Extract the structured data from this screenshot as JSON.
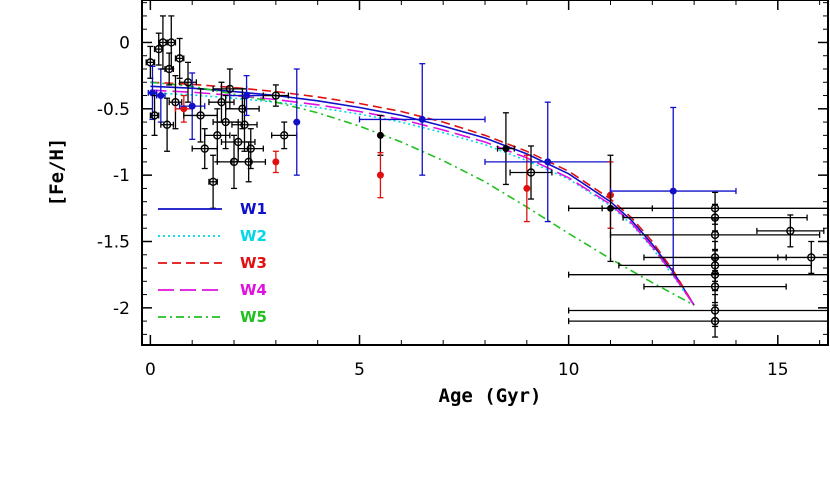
{
  "chart_data": {
    "type": "scatter",
    "xlabel": "Age (Gyr)",
    "ylabel": "[Fe/H]",
    "xlim": [
      -0.2,
      16.2
    ],
    "ylim": [
      -2.28,
      0.32
    ],
    "xticks": [
      0,
      5,
      10,
      15
    ],
    "yticks": [
      0,
      -0.5,
      -1,
      -1.5,
      -2
    ],
    "xtick_labels": [
      "0",
      "5",
      "10",
      "15"
    ],
    "ytick_labels": [
      "0",
      "-0.5",
      "-1",
      "-1.5",
      "-2"
    ],
    "grid": false,
    "legend_position": "bottom-left",
    "series": [
      {
        "name": "W1",
        "color": "#1010c8",
        "dash": "solid",
        "x": [
          0,
          1,
          2,
          3,
          4,
          5,
          6,
          7,
          8,
          9,
          10,
          11,
          11.5,
          12,
          12.5,
          13
        ],
        "y": [
          -0.33,
          -0.345,
          -0.37,
          -0.4,
          -0.44,
          -0.49,
          -0.55,
          -0.63,
          -0.72,
          -0.84,
          -0.99,
          -1.2,
          -1.34,
          -1.52,
          -1.73,
          -1.98
        ]
      },
      {
        "name": "W2",
        "color": "#00d8e8",
        "dash": "dotted",
        "x": [
          0,
          1,
          2,
          3,
          4,
          5,
          6,
          7,
          8,
          9,
          10,
          11,
          11.5,
          12,
          12.5,
          13
        ],
        "y": [
          -0.38,
          -0.395,
          -0.42,
          -0.45,
          -0.49,
          -0.54,
          -0.6,
          -0.68,
          -0.77,
          -0.89,
          -1.03,
          -1.23,
          -1.37,
          -1.55,
          -1.76,
          -1.98
        ]
      },
      {
        "name": "W3",
        "color": "#e01010",
        "dash": "dashed",
        "x": [
          0,
          1,
          2,
          3,
          4,
          5,
          6,
          7,
          8,
          9,
          10,
          11,
          11.5,
          12,
          12.5,
          13
        ],
        "y": [
          -0.3,
          -0.315,
          -0.34,
          -0.37,
          -0.41,
          -0.46,
          -0.52,
          -0.6,
          -0.7,
          -0.82,
          -0.97,
          -1.18,
          -1.32,
          -1.5,
          -1.72,
          -1.98
        ]
      },
      {
        "name": "W4",
        "color": "#e010e0",
        "dash": "long-dashed",
        "x": [
          0,
          1,
          2,
          3,
          4,
          5,
          6,
          7,
          8,
          9,
          10,
          11,
          11.5,
          12,
          12.5,
          13
        ],
        "y": [
          -0.36,
          -0.375,
          -0.4,
          -0.43,
          -0.47,
          -0.52,
          -0.58,
          -0.66,
          -0.75,
          -0.87,
          -1.02,
          -1.22,
          -1.36,
          -1.54,
          -1.75,
          -1.98
        ]
      },
      {
        "name": "W5",
        "color": "#20c020",
        "dash": "dash-dot",
        "x": [
          0,
          1,
          2,
          3,
          4,
          5,
          6,
          7,
          8,
          9,
          10,
          11,
          12,
          13
        ],
        "y": [
          -0.3,
          -0.33,
          -0.39,
          -0.45,
          -0.53,
          -0.63,
          -0.75,
          -0.89,
          -1.05,
          -1.24,
          -1.44,
          -1.63,
          -1.81,
          -1.98
        ]
      }
    ],
    "observations": [
      {
        "x": 0.0,
        "y": -0.15,
        "xerr": 0.1,
        "yerr": 0.12,
        "color": "#000000",
        "open": true
      },
      {
        "x": 0.05,
        "y": -0.38,
        "xerr": 0.1,
        "yerr": 0.2,
        "color": "#1010c8",
        "open": false
      },
      {
        "x": 0.1,
        "y": -0.55,
        "xerr": 0.1,
        "yerr": 0.15,
        "color": "#000000",
        "open": true
      },
      {
        "x": 0.2,
        "y": -0.05,
        "xerr": 0.1,
        "yerr": 0.12,
        "color": "#000000",
        "open": true
      },
      {
        "x": 0.25,
        "y": -0.4,
        "xerr": 0.1,
        "yerr": 0.2,
        "color": "#1010c8",
        "open": false
      },
      {
        "x": 0.3,
        "y": 0.0,
        "xerr": 0.1,
        "yerr": 0.2,
        "color": "#000000",
        "open": true
      },
      {
        "x": 0.4,
        "y": -0.62,
        "xerr": 0.15,
        "yerr": 0.2,
        "color": "#000000",
        "open": true
      },
      {
        "x": 0.45,
        "y": -0.2,
        "xerr": 0.1,
        "yerr": 0.12,
        "color": "#000000",
        "open": true
      },
      {
        "x": 0.5,
        "y": 0.0,
        "xerr": 0.1,
        "yerr": 0.2,
        "color": "#000000",
        "open": true
      },
      {
        "x": 0.6,
        "y": -0.45,
        "xerr": 0.15,
        "yerr": 0.2,
        "color": "#000000",
        "open": true
      },
      {
        "x": 0.7,
        "y": -0.12,
        "xerr": 0.1,
        "yerr": 0.15,
        "color": "#000000",
        "open": true
      },
      {
        "x": 0.8,
        "y": -0.5,
        "xerr": 0.2,
        "yerr": 0.1,
        "color": "#e01010",
        "open": false
      },
      {
        "x": 0.9,
        "y": -0.3,
        "xerr": 0.2,
        "yerr": 0.15,
        "color": "#000000",
        "open": true
      },
      {
        "x": 1.0,
        "y": -0.48,
        "xerr": 0.3,
        "yerr": 0.25,
        "color": "#1010c8",
        "open": false
      },
      {
        "x": 1.2,
        "y": -0.55,
        "xerr": 0.4,
        "yerr": 0.2,
        "color": "#000000",
        "open": true
      },
      {
        "x": 1.3,
        "y": -0.8,
        "xerr": 0.3,
        "yerr": 0.15,
        "color": "#000000",
        "open": true
      },
      {
        "x": 1.5,
        "y": -1.05,
        "xerr": 0.1,
        "yerr": 0.2,
        "color": "#000000",
        "open": true
      },
      {
        "x": 1.6,
        "y": -0.7,
        "xerr": 0.3,
        "yerr": 0.2,
        "color": "#000000",
        "open": true
      },
      {
        "x": 1.7,
        "y": -0.45,
        "xerr": 0.3,
        "yerr": 0.15,
        "color": "#000000",
        "open": true
      },
      {
        "x": 1.8,
        "y": -0.6,
        "xerr": 0.3,
        "yerr": 0.2,
        "color": "#000000",
        "open": true
      },
      {
        "x": 1.9,
        "y": -0.35,
        "xerr": 0.4,
        "yerr": 0.15,
        "color": "#000000",
        "open": true
      },
      {
        "x": 2.0,
        "y": -0.9,
        "xerr": 0.4,
        "yerr": 0.2,
        "color": "#000000",
        "open": true
      },
      {
        "x": 2.1,
        "y": -0.75,
        "xerr": 0.4,
        "yerr": 0.15,
        "color": "#000000",
        "open": true
      },
      {
        "x": 2.2,
        "y": -0.5,
        "xerr": 0.4,
        "yerr": 0.15,
        "color": "#000000",
        "open": true
      },
      {
        "x": 2.25,
        "y": -0.62,
        "xerr": 0.3,
        "yerr": 0.2,
        "color": "#000000",
        "open": true
      },
      {
        "x": 2.3,
        "y": -0.4,
        "xerr": 0.4,
        "yerr": 0.15,
        "color": "#1010c8",
        "open": false
      },
      {
        "x": 2.35,
        "y": -0.9,
        "xerr": 0.4,
        "yerr": 0.15,
        "color": "#000000",
        "open": true
      },
      {
        "x": 2.4,
        "y": -0.8,
        "xerr": 0.3,
        "yerr": 0.15,
        "color": "#000000",
        "open": true
      },
      {
        "x": 3.0,
        "y": -0.9,
        "xerr": 0.0,
        "yerr": 0.08,
        "color": "#e01010",
        "open": false
      },
      {
        "x": 3.0,
        "y": -0.4,
        "xerr": 0.3,
        "yerr": 0.08,
        "color": "#000000",
        "open": true
      },
      {
        "x": 3.2,
        "y": -0.7,
        "xerr": 0.3,
        "yerr": 0.1,
        "color": "#000000",
        "open": true
      },
      {
        "x": 3.5,
        "y": -0.6,
        "xerr": 0.0,
        "yerr": 0.4,
        "color": "#1010c8",
        "open": false
      },
      {
        "x": 5.5,
        "y": -0.7,
        "xerr": 0.0,
        "yerr": 0.15,
        "color": "#000000",
        "open": false
      },
      {
        "x": 5.5,
        "y": -1.0,
        "xerr": 0.0,
        "yerr": 0.17,
        "color": "#e01010",
        "open": false
      },
      {
        "x": 6.5,
        "y": -0.58,
        "xerr": 1.5,
        "yerr": 0.42,
        "color": "#1010c8",
        "open": false
      },
      {
        "x": 8.5,
        "y": -0.8,
        "xerr": 0.2,
        "yerr": 0.27,
        "color": "#000000",
        "open": false
      },
      {
        "x": 9.0,
        "y": -1.1,
        "xerr": 0.0,
        "yerr": 0.25,
        "color": "#e01010",
        "open": false
      },
      {
        "x": 9.1,
        "y": -0.98,
        "xerr": 0.5,
        "yerr": 0.2,
        "color": "#000000",
        "open": true
      },
      {
        "x": 9.5,
        "y": -0.9,
        "xerr": 1.5,
        "yerr": 0.45,
        "color": "#1010c8",
        "open": false
      },
      {
        "x": 11.0,
        "y": -1.15,
        "xerr": 0.0,
        "yerr": 0.25,
        "color": "#e01010",
        "open": false
      },
      {
        "x": 11.0,
        "y": -1.25,
        "xerr": 1.0,
        "yerr": 0.4,
        "color": "#000000",
        "open": false
      },
      {
        "x": 12.5,
        "y": -1.12,
        "xerr": 1.5,
        "yerr": 0.63,
        "color": "#1010c8",
        "open": false
      },
      {
        "x": 13.5,
        "y": -1.25,
        "xerr": 2.7,
        "yerr": 0.12,
        "color": "#000000",
        "open": true
      },
      {
        "x": 13.5,
        "y": -1.32,
        "xerr": 2.2,
        "yerr": 0.1,
        "color": "#000000",
        "open": true
      },
      {
        "x": 13.5,
        "y": -1.45,
        "xerr": 2.5,
        "yerr": 0.12,
        "color": "#000000",
        "open": true
      },
      {
        "x": 13.5,
        "y": -1.62,
        "xerr": 1.7,
        "yerr": 0.12,
        "color": "#000000",
        "open": true
      },
      {
        "x": 13.5,
        "y": -1.68,
        "xerr": 2.3,
        "yerr": 0.12,
        "color": "#000000",
        "open": true
      },
      {
        "x": 13.5,
        "y": -1.75,
        "xerr": 3.5,
        "yerr": 0.12,
        "color": "#000000",
        "open": true
      },
      {
        "x": 13.5,
        "y": -1.84,
        "xerr": 1.7,
        "yerr": 0.12,
        "color": "#000000",
        "open": true
      },
      {
        "x": 13.5,
        "y": -2.02,
        "xerr": 3.5,
        "yerr": 0.12,
        "color": "#000000",
        "open": true
      },
      {
        "x": 13.5,
        "y": -2.1,
        "xerr": 3.5,
        "yerr": 0.12,
        "color": "#000000",
        "open": true
      },
      {
        "x": 15.3,
        "y": -1.42,
        "xerr": 0.8,
        "yerr": 0.12,
        "color": "#000000",
        "open": true
      },
      {
        "x": 15.8,
        "y": -1.62,
        "xerr": 0.8,
        "yerr": 0.12,
        "color": "#000000",
        "open": true
      }
    ]
  }
}
